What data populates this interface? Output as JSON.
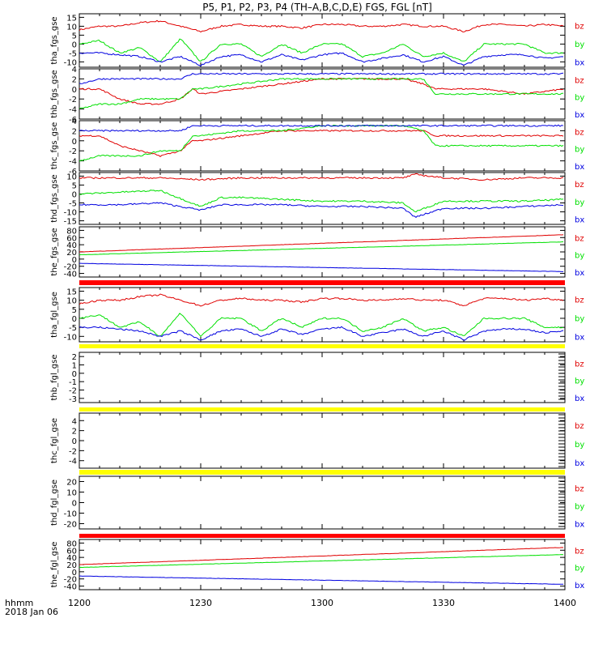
{
  "title": "P5,  P1,  P2,  P3,  P4  (TH–A,B,C,D,E)  FGS,  FGL  [nT]",
  "colors": {
    "bz": "#e00000",
    "by": "#00e000",
    "bx": "#0000e0",
    "bar_red": "#ff0000",
    "bar_yellow": "#ffff00"
  },
  "x_axis": {
    "ticks": [
      "1200",
      "1230",
      "1300",
      "1330",
      "1400"
    ],
    "range_minutes": [
      0,
      120
    ],
    "tick_minutes": [
      0,
      30,
      60,
      90,
      120
    ],
    "corner_label_1": "hhmm",
    "corner_label_2": "2018 Jan 06"
  },
  "legend": [
    "bz",
    "by",
    "bx"
  ],
  "chart_data": [
    {
      "type": "line",
      "ylabel": "tha_fgs_gse",
      "ylim": [
        -13,
        17
      ],
      "yticks": [
        15,
        10,
        5,
        0,
        -5,
        -10
      ],
      "series": [
        {
          "name": "bz",
          "x": [
            0,
            5,
            10,
            15,
            20,
            25,
            30,
            35,
            40,
            45,
            50,
            55,
            60,
            65,
            70,
            75,
            80,
            85,
            90,
            95,
            100,
            105,
            110,
            115,
            120
          ],
          "values": [
            8,
            10,
            10,
            12,
            13,
            10,
            7,
            10,
            11,
            10,
            10,
            9,
            11,
            11,
            10,
            10,
            11,
            10,
            10,
            7,
            11,
            11,
            10,
            11,
            10
          ]
        },
        {
          "name": "by",
          "x": [
            0,
            5,
            10,
            15,
            20,
            25,
            30,
            35,
            40,
            45,
            50,
            55,
            60,
            65,
            70,
            75,
            80,
            85,
            90,
            95,
            100,
            105,
            110,
            115,
            120
          ],
          "values": [
            0,
            2,
            -5,
            -2,
            -10,
            3,
            -10,
            0,
            0,
            -7,
            0,
            -5,
            0,
            0,
            -7,
            -5,
            0,
            -7,
            -5,
            -10,
            0,
            0,
            0,
            -5,
            -5
          ]
        },
        {
          "name": "bx",
          "x": [
            0,
            5,
            10,
            15,
            20,
            25,
            30,
            35,
            40,
            45,
            50,
            55,
            60,
            65,
            70,
            75,
            80,
            85,
            90,
            95,
            100,
            105,
            110,
            115,
            120
          ],
          "values": [
            -5,
            -5,
            -6,
            -7,
            -10,
            -7,
            -12,
            -7,
            -6,
            -10,
            -6,
            -9,
            -6,
            -5,
            -10,
            -8,
            -6,
            -10,
            -7,
            -12,
            -7,
            -6,
            -6,
            -8,
            -7
          ]
        }
      ]
    },
    {
      "type": "line",
      "ylabel": "thb_fgs_gse",
      "ylim": [
        -6,
        4
      ],
      "yticks": [
        4,
        2,
        0,
        -2,
        -4,
        -6
      ],
      "series": [
        {
          "name": "bz",
          "x": [
            0,
            5,
            10,
            15,
            20,
            25,
            28,
            30,
            40,
            50,
            60,
            70,
            80,
            85,
            88,
            90,
            100,
            110,
            120
          ],
          "values": [
            0,
            0,
            -2,
            -3,
            -3,
            -2,
            0,
            -1,
            0,
            1,
            2,
            2,
            2,
            1,
            0,
            0,
            0,
            -1,
            0
          ]
        },
        {
          "name": "by",
          "x": [
            0,
            5,
            10,
            15,
            20,
            25,
            28,
            30,
            40,
            50,
            60,
            70,
            80,
            85,
            88,
            90,
            100,
            110,
            120
          ],
          "values": [
            -4,
            -3,
            -3,
            -2,
            -2,
            -2,
            0,
            0,
            1,
            2,
            2,
            2,
            2,
            2,
            -1,
            -1,
            -1,
            -1,
            -1
          ]
        },
        {
          "name": "bx",
          "x": [
            0,
            5,
            10,
            15,
            20,
            25,
            28,
            30,
            40,
            50,
            60,
            70,
            80,
            85,
            88,
            90,
            100,
            110,
            120
          ],
          "values": [
            1,
            2,
            2,
            2,
            2,
            2,
            3,
            3,
            3,
            3,
            3,
            3,
            3,
            3,
            3,
            3,
            3,
            3,
            3
          ]
        }
      ]
    },
    {
      "type": "line",
      "ylabel": "thc_fgs_gse",
      "ylim": [
        -6,
        4
      ],
      "yticks": [
        4,
        2,
        0,
        -2,
        -4,
        -6
      ],
      "series": [
        {
          "name": "bz",
          "x": [
            0,
            5,
            10,
            15,
            20,
            25,
            28,
            30,
            40,
            50,
            60,
            70,
            80,
            85,
            88,
            90,
            100,
            110,
            120
          ],
          "values": [
            1,
            1,
            -1,
            -2,
            -3,
            -2,
            0,
            0,
            1,
            2,
            2,
            2,
            2,
            2,
            1,
            1,
            1,
            1,
            1
          ]
        },
        {
          "name": "by",
          "x": [
            0,
            5,
            10,
            15,
            20,
            25,
            28,
            30,
            40,
            50,
            60,
            70,
            80,
            85,
            88,
            90,
            100,
            110,
            120
          ],
          "values": [
            -4,
            -3,
            -3,
            -3,
            -2,
            -2,
            1,
            1,
            2,
            2,
            3,
            3,
            3,
            2,
            -1,
            -1,
            -1,
            -1,
            -1
          ]
        },
        {
          "name": "bx",
          "x": [
            0,
            5,
            10,
            15,
            20,
            25,
            28,
            30,
            40,
            50,
            60,
            70,
            80,
            85,
            88,
            90,
            100,
            110,
            120
          ],
          "values": [
            2,
            2,
            2,
            2,
            2,
            2,
            3,
            3,
            3,
            3,
            3,
            3,
            3,
            3,
            3,
            3,
            3,
            3,
            3
          ]
        }
      ]
    },
    {
      "type": "line",
      "ylabel": "thd_fgs_gse",
      "ylim": [
        -17,
        12
      ],
      "yticks": [
        10,
        5,
        0,
        -5,
        -10,
        -15
      ],
      "series": [
        {
          "name": "bz",
          "x": [
            0,
            10,
            20,
            30,
            40,
            50,
            60,
            70,
            80,
            83,
            90,
            100,
            110,
            120
          ],
          "values": [
            9,
            9,
            9,
            8,
            9,
            9,
            9,
            9,
            9,
            11,
            9,
            8,
            9,
            9
          ]
        },
        {
          "name": "by",
          "x": [
            0,
            10,
            20,
            30,
            35,
            40,
            50,
            60,
            70,
            80,
            83,
            90,
            100,
            110,
            120
          ],
          "values": [
            0,
            1,
            2,
            -7,
            -2,
            -2,
            -3,
            -4,
            -4,
            -5,
            -10,
            -4,
            -4,
            -4,
            -3
          ]
        },
        {
          "name": "bx",
          "x": [
            0,
            10,
            20,
            30,
            35,
            40,
            50,
            60,
            70,
            80,
            83,
            90,
            100,
            110,
            120
          ],
          "values": [
            -6,
            -6,
            -5,
            -9,
            -6,
            -6,
            -6,
            -7,
            -7,
            -8,
            -13,
            -8,
            -8,
            -7,
            -6
          ]
        }
      ]
    },
    {
      "type": "line",
      "ylabel": "the_fgs_gse",
      "ylim": [
        -50,
        90
      ],
      "yticks": [
        80,
        60,
        40,
        20,
        0,
        -20,
        -40
      ],
      "series": [
        {
          "name": "bz",
          "x": [
            0,
            120
          ],
          "values": [
            20,
            68
          ]
        },
        {
          "name": "by",
          "x": [
            0,
            120
          ],
          "values": [
            12,
            48
          ]
        },
        {
          "name": "bx",
          "x": [
            0,
            120
          ],
          "values": [
            -12,
            -35
          ]
        }
      ]
    },
    {
      "type": "line",
      "ylabel": "tha_fgl_gse",
      "ylim": [
        -13,
        17
      ],
      "yticks": [
        15,
        10,
        5,
        0,
        -5,
        -10
      ],
      "series": [
        {
          "name": "bz",
          "x": [
            0,
            5,
            10,
            15,
            20,
            25,
            30,
            35,
            40,
            45,
            50,
            55,
            60,
            65,
            70,
            75,
            80,
            85,
            90,
            95,
            100,
            105,
            110,
            115,
            120
          ],
          "values": [
            8,
            10,
            10,
            12,
            13,
            10,
            7,
            10,
            11,
            10,
            10,
            9,
            11,
            11,
            10,
            10,
            11,
            10,
            10,
            7,
            11,
            11,
            10,
            11,
            10
          ]
        },
        {
          "name": "by",
          "x": [
            0,
            5,
            10,
            15,
            20,
            25,
            30,
            35,
            40,
            45,
            50,
            55,
            60,
            65,
            70,
            75,
            80,
            85,
            90,
            95,
            100,
            105,
            110,
            115,
            120
          ],
          "values": [
            0,
            2,
            -5,
            -2,
            -10,
            3,
            -10,
            0,
            0,
            -7,
            0,
            -5,
            0,
            0,
            -7,
            -5,
            0,
            -7,
            -5,
            -10,
            0,
            0,
            0,
            -5,
            -5
          ]
        },
        {
          "name": "bx",
          "x": [
            0,
            5,
            10,
            15,
            20,
            25,
            30,
            35,
            40,
            45,
            50,
            55,
            60,
            65,
            70,
            75,
            80,
            85,
            90,
            95,
            100,
            105,
            110,
            115,
            120
          ],
          "values": [
            -5,
            -5,
            -6,
            -7,
            -10,
            -7,
            -12,
            -7,
            -6,
            -10,
            -6,
            -9,
            -6,
            -5,
            -10,
            -8,
            -6,
            -10,
            -7,
            -12,
            -7,
            -6,
            -6,
            -8,
            -7
          ]
        }
      ]
    },
    {
      "type": "line",
      "ylabel": "thb_fgl_gse",
      "ylim": [
        -3.5,
        2.5
      ],
      "yticks": [
        2,
        1,
        0,
        -1,
        -2,
        -3
      ],
      "series": []
    },
    {
      "type": "line",
      "ylabel": "thc_fgl_gse",
      "ylim": [
        -5.5,
        5.5
      ],
      "yticks": [
        4,
        2,
        0,
        -2,
        -4
      ],
      "series": []
    },
    {
      "type": "line",
      "ylabel": "thd_fgl_gse",
      "ylim": [
        -25,
        25
      ],
      "yticks": [
        20,
        10,
        0,
        -10,
        -20
      ],
      "series": []
    },
    {
      "type": "line",
      "ylabel": "the_fgl_gse",
      "ylim": [
        -50,
        90
      ],
      "yticks": [
        80,
        60,
        40,
        20,
        0,
        -20,
        -40
      ],
      "series": [
        {
          "name": "bz",
          "x": [
            0,
            120
          ],
          "values": [
            20,
            68
          ]
        },
        {
          "name": "by",
          "x": [
            0,
            120
          ],
          "values": [
            12,
            48
          ]
        },
        {
          "name": "bx",
          "x": [
            0,
            120
          ],
          "values": [
            -12,
            -35
          ]
        }
      ]
    }
  ],
  "status_bars": [
    {
      "after_panel": 4,
      "color": "red"
    },
    {
      "after_panel": 5,
      "color": "yellow"
    },
    {
      "after_panel": 6,
      "color": "yellow"
    },
    {
      "after_panel": 7,
      "color": "yellow"
    },
    {
      "after_panel": 8,
      "color": "red"
    }
  ]
}
